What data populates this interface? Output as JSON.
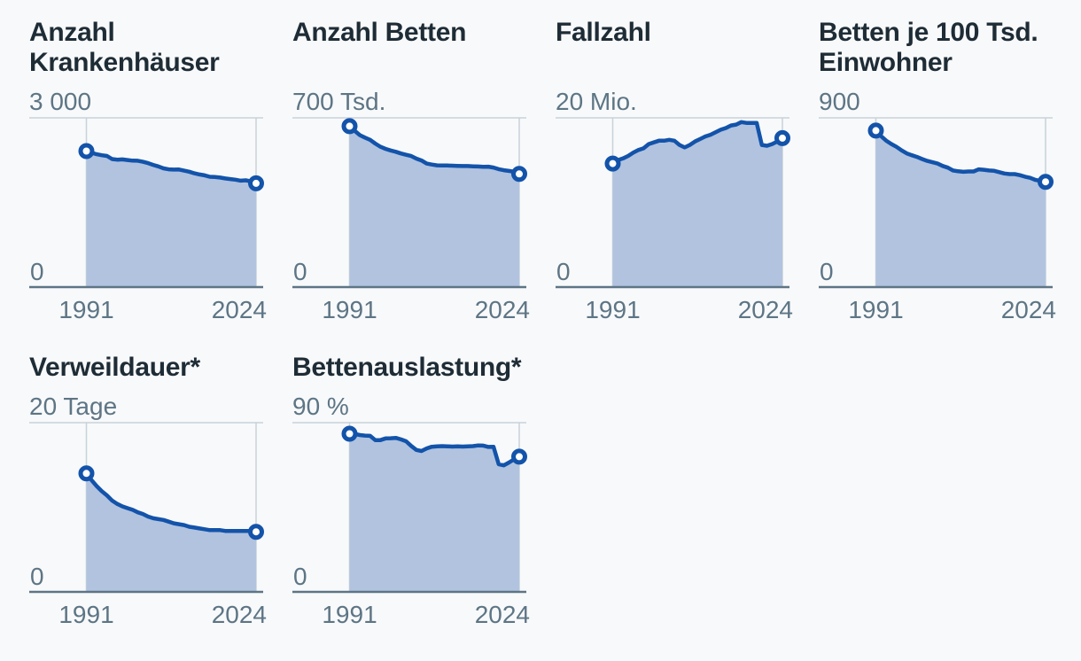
{
  "style": {
    "background": "#f8f9fa",
    "title_color": "#1e2c36",
    "label_color": "#5d7585",
    "grid_color": "#c8d2da",
    "axis_color": "#5d7585",
    "line_color": "#1353aa",
    "area_color": "#b1c3df",
    "marker_fill": "#ffffff"
  },
  "chart_data": [
    {
      "type": "area",
      "id": "anzahl-krankenhaeuser",
      "title": "Anzahl Krankenhäuser",
      "ymax_label": "3 000",
      "ymin_label": "0",
      "ylim": [
        0,
        3000
      ],
      "x_range": [
        1991,
        2024
      ],
      "x_ticks": [
        "1991",
        "2024"
      ],
      "values": [
        2411,
        2381,
        2354,
        2337,
        2325,
        2269,
        2258,
        2263,
        2252,
        2242,
        2240,
        2221,
        2197,
        2166,
        2139,
        2104,
        2087,
        2083,
        2084,
        2064,
        2045,
        2017,
        1996,
        1980,
        1956,
        1951,
        1942,
        1925,
        1914,
        1903,
        1887,
        1893,
        1874,
        1840
      ]
    },
    {
      "type": "area",
      "id": "anzahl-betten",
      "title": "Anzahl Betten",
      "ymax_label": "700 Tsd.",
      "ymin_label": "0",
      "ylim": [
        0,
        700
      ],
      "x_range": [
        1991,
        2024
      ],
      "x_ticks": [
        "1991",
        "2024"
      ],
      "values": [
        665.6,
        646.5,
        628.7,
        618.2,
        609.1,
        593.7,
        580.4,
        571.6,
        565.3,
        559.7,
        552.7,
        547.3,
        541.9,
        531.3,
        523.8,
        510.8,
        506.9,
        503.4,
        503.3,
        502.7,
        502.0,
        501.5,
        500.7,
        500.7,
        499.4,
        498.7,
        497.2,
        498.2,
        494.3,
        487.8,
        483.5,
        480.4,
        476.9,
        468.0
      ]
    },
    {
      "type": "area",
      "id": "fallzahl",
      "title": "Fallzahl",
      "ymax_label": "20 Mio.",
      "ymin_label": "0",
      "ylim": [
        0,
        20
      ],
      "x_range": [
        1991,
        2024
      ],
      "x_ticks": [
        "1991",
        "2024"
      ],
      "values": [
        14.6,
        15.0,
        15.2,
        15.5,
        15.9,
        16.2,
        16.4,
        16.9,
        17.1,
        17.3,
        17.3,
        17.4,
        17.3,
        16.8,
        16.5,
        16.8,
        17.2,
        17.5,
        17.8,
        18.0,
        18.3,
        18.6,
        18.8,
        19.1,
        19.2,
        19.5,
        19.4,
        19.4,
        19.4,
        16.8,
        16.7,
        16.9,
        17.2,
        17.6
      ]
    },
    {
      "type": "area",
      "id": "betten-je-100-tsd-einwohner",
      "title": "Betten je 100 Tsd. Einwohner",
      "ymax_label": "900",
      "ymin_label": "0",
      "ylim": [
        0,
        900
      ],
      "x_range": [
        1991,
        2024
      ],
      "x_ticks": [
        "1991",
        "2024"
      ],
      "values": [
        832,
        803,
        779,
        761,
        746,
        727,
        711,
        701,
        692,
        681,
        671,
        664,
        657,
        644,
        635,
        620,
        616,
        613,
        615,
        615,
        626,
        624,
        620,
        618,
        611,
        604,
        601,
        601,
        595,
        587,
        581,
        570,
        565,
        560
      ]
    },
    {
      "type": "area",
      "id": "verweildauer",
      "title": "Verweildauer*",
      "ymax_label": "20 Tage",
      "ymin_label": "0",
      "ylim": [
        0,
        20
      ],
      "x_range": [
        1991,
        2024
      ],
      "x_ticks": [
        "1991",
        "2024"
      ],
      "values": [
        14.0,
        13.2,
        12.5,
        11.9,
        11.4,
        10.8,
        10.4,
        10.1,
        9.9,
        9.7,
        9.4,
        9.2,
        8.9,
        8.7,
        8.6,
        8.5,
        8.3,
        8.1,
        8.0,
        7.9,
        7.7,
        7.6,
        7.5,
        7.4,
        7.3,
        7.3,
        7.3,
        7.2,
        7.2,
        7.2,
        7.2,
        7.2,
        7.2,
        7.1
      ]
    },
    {
      "type": "area",
      "id": "bettenauslastung",
      "title": "Bettenauslastung*",
      "ymax_label": "90 %",
      "ymin_label": "0",
      "ylim": [
        0,
        90
      ],
      "x_range": [
        1991,
        2024
      ],
      "x_ticks": [
        "1991",
        "2024"
      ],
      "values": [
        84.1,
        84.0,
        83.4,
        83.1,
        83.0,
        80.7,
        80.7,
        81.6,
        81.7,
        81.9,
        81.1,
        80.1,
        77.6,
        75.5,
        74.9,
        76.3,
        77.2,
        77.4,
        77.5,
        77.4,
        77.3,
        77.4,
        77.3,
        77.4,
        77.5,
        77.9,
        77.8,
        77.1,
        77.2,
        67.9,
        67.3,
        68.8,
        70.5,
        71.9
      ]
    }
  ]
}
